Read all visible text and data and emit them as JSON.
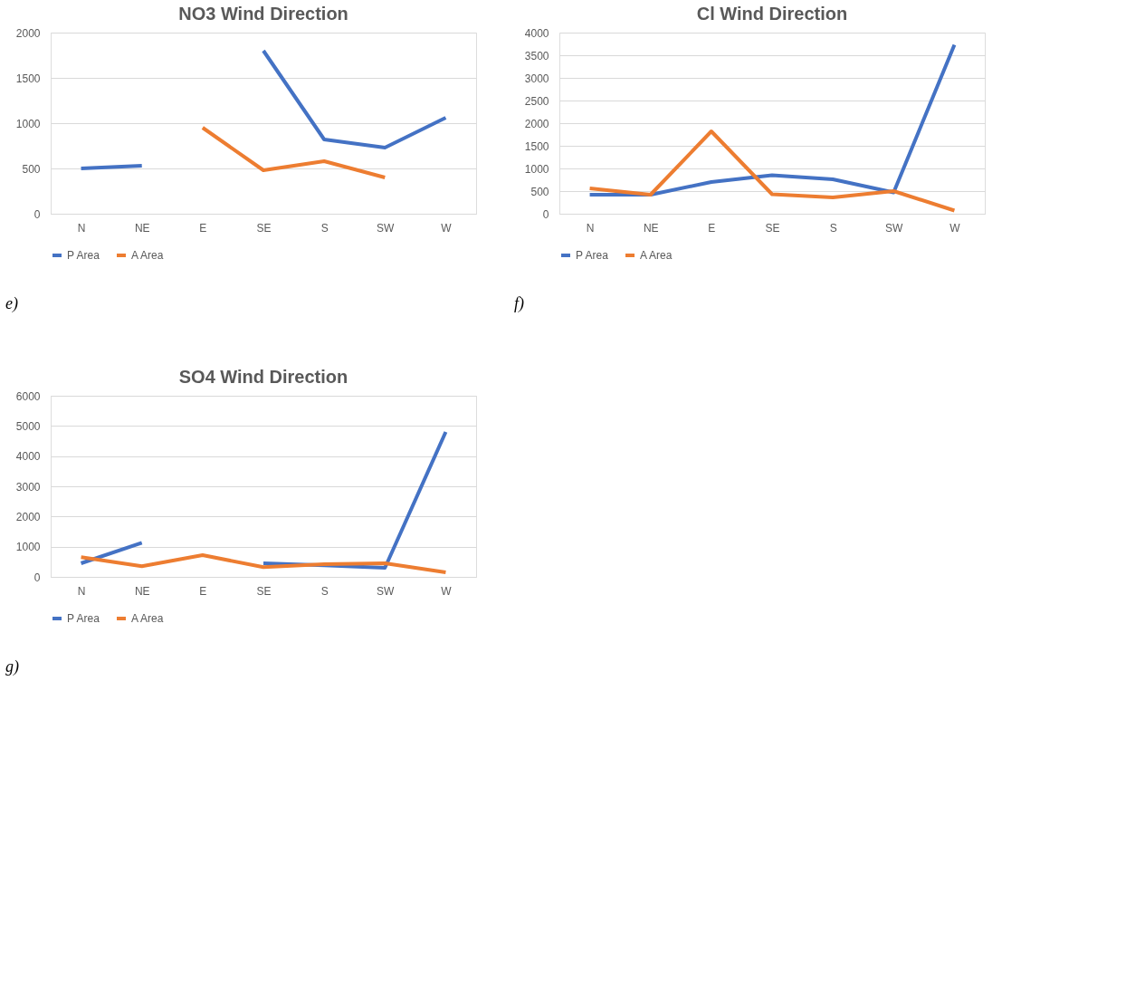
{
  "chart_data": [
    {
      "type": "line",
      "title": "NO3 Wind Direction",
      "categories": [
        "N",
        "NE",
        "E",
        "SE",
        "S",
        "SW",
        "W"
      ],
      "ylim": [
        0,
        2000
      ],
      "yticks": [
        0,
        500,
        1000,
        1500,
        2000
      ],
      "grid": "y",
      "legend": "bottom",
      "annotations": [
        "e)"
      ],
      "series": [
        {
          "name": "P Area",
          "color": "#4472c4",
          "values": [
            500,
            530,
            null,
            1800,
            820,
            730,
            1060
          ]
        },
        {
          "name": "A Area",
          "color": "#ed7d31",
          "values": [
            null,
            null,
            950,
            480,
            580,
            400,
            null
          ]
        }
      ]
    },
    {
      "type": "line",
      "title": "Cl Wind Direction",
      "categories": [
        "N",
        "NE",
        "E",
        "SE",
        "S",
        "SW",
        "W"
      ],
      "ylim": [
        0,
        4000
      ],
      "yticks": [
        0,
        500,
        1000,
        1500,
        2000,
        2500,
        3000,
        3500,
        4000
      ],
      "grid": "y",
      "legend": "bottom",
      "annotations": [
        "f)"
      ],
      "series": [
        {
          "name": "P Area",
          "color": "#4472c4",
          "values": [
            420,
            420,
            700,
            850,
            760,
            470,
            3730
          ]
        },
        {
          "name": "A Area",
          "color": "#ed7d31",
          "values": [
            560,
            420,
            1820,
            430,
            360,
            500,
            70
          ]
        }
      ]
    },
    {
      "type": "line",
      "title": "SO4 Wind Direction",
      "categories": [
        "N",
        "NE",
        "E",
        "SE",
        "S",
        "SW",
        "W"
      ],
      "ylim": [
        0,
        6000
      ],
      "yticks": [
        0,
        1000,
        2000,
        3000,
        4000,
        5000,
        6000
      ],
      "grid": "y",
      "legend": "bottom",
      "annotations": [
        "g)"
      ],
      "series": [
        {
          "name": "P Area",
          "color": "#4472c4",
          "values": [
            450,
            1130,
            null,
            450,
            380,
            300,
            4800
          ]
        },
        {
          "name": "A Area",
          "color": "#ed7d31",
          "values": [
            650,
            350,
            720,
            320,
            420,
            450,
            150
          ]
        }
      ]
    }
  ]
}
